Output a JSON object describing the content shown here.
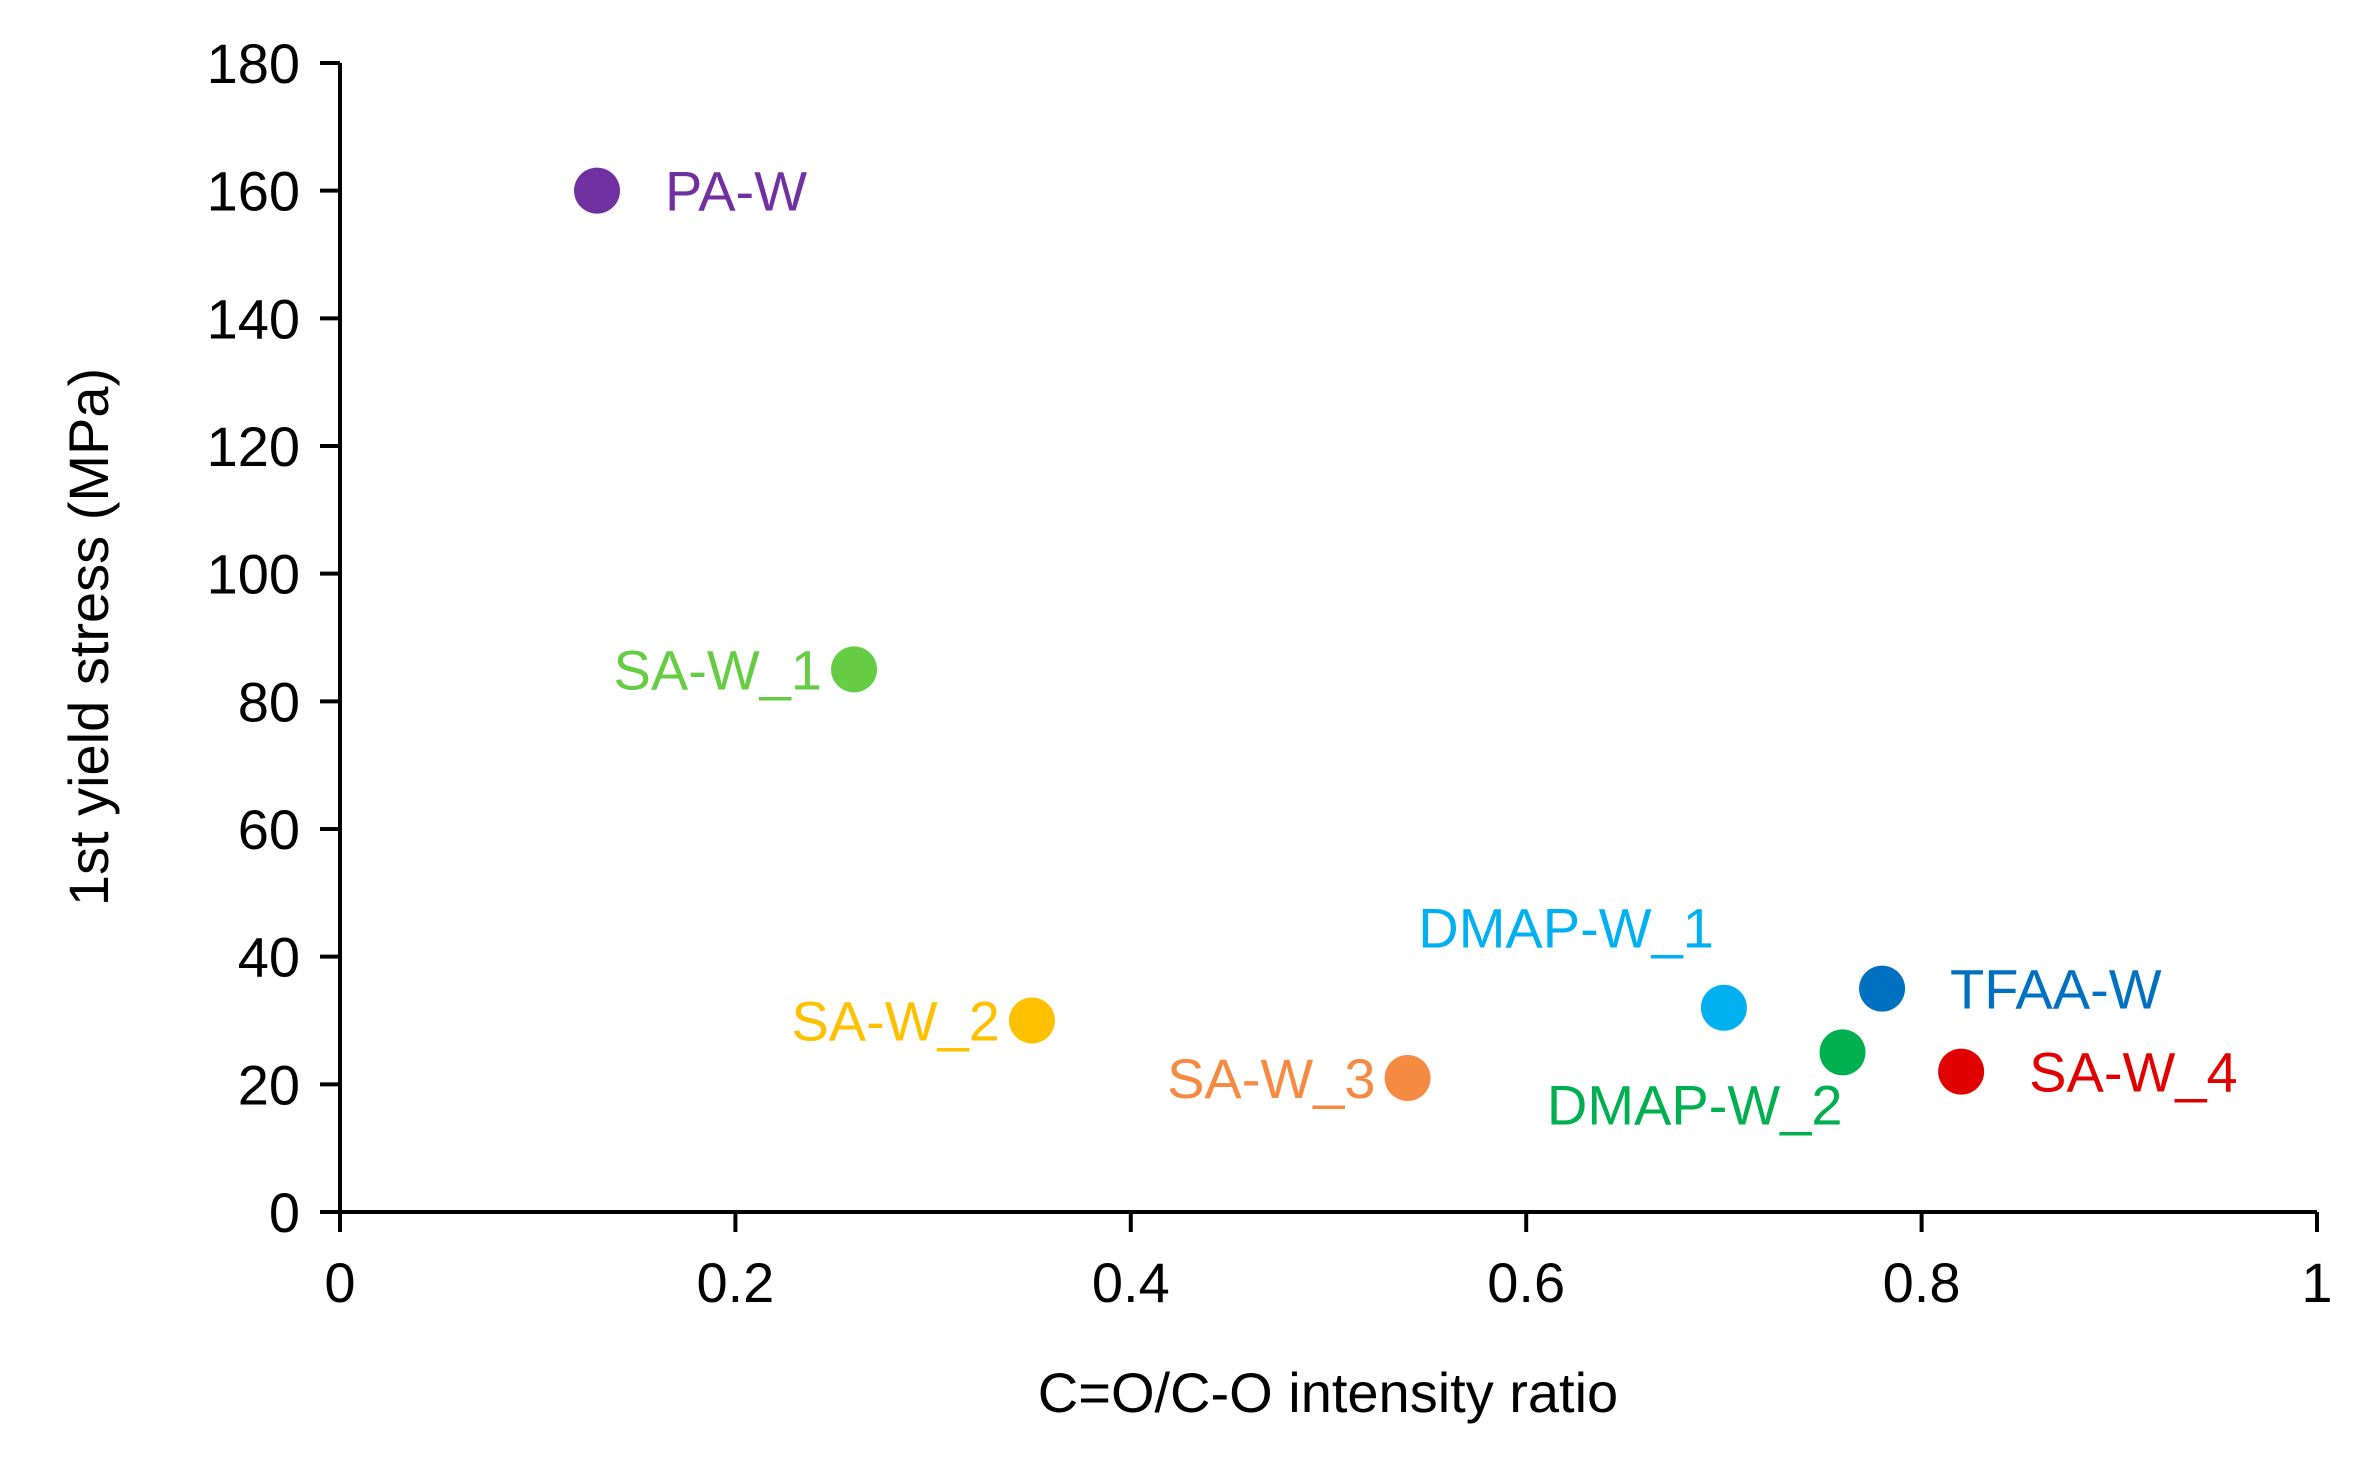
{
  "chart_data": {
    "type": "scatter",
    "title": "",
    "xlabel": "C=O/C-O intensity ratio",
    "ylabel": "1st yield stress (MPa)",
    "xlim": [
      0,
      1
    ],
    "ylim": [
      0,
      180
    ],
    "xticks": [
      0,
      0.2,
      0.4,
      0.6,
      0.8,
      1
    ],
    "xtick_labels": [
      "0",
      "0.2",
      "0.4",
      "0.6",
      "0.8",
      "1"
    ],
    "yticks": [
      0,
      20,
      40,
      60,
      80,
      100,
      120,
      140,
      160,
      180
    ],
    "ytick_labels": [
      "0",
      "20",
      "40",
      "60",
      "80",
      "100",
      "120",
      "140",
      "160",
      "180"
    ],
    "grid": false,
    "points": [
      {
        "label": "PA-W",
        "x": 0.13,
        "y": 160,
        "color": "#7030A0",
        "label_pos": "right"
      },
      {
        "label": "SA-W_1",
        "x": 0.26,
        "y": 85,
        "color": "#66CC44",
        "label_pos": "left"
      },
      {
        "label": "SA-W_2",
        "x": 0.35,
        "y": 30,
        "color": "#FFC000",
        "label_pos": "left"
      },
      {
        "label": "SA-W_3",
        "x": 0.54,
        "y": 21,
        "color": "#F58A42",
        "label_pos": "left"
      },
      {
        "label": "DMAP-W_1",
        "x": 0.7,
        "y": 32,
        "color": "#00B0F0",
        "label_pos": "upper-left"
      },
      {
        "label": "DMAP-W_2",
        "x": 0.76,
        "y": 25,
        "color": "#00B050",
        "label_pos": "lower-left"
      },
      {
        "label": "TFAA-W",
        "x": 0.78,
        "y": 35,
        "color": "#0070C0",
        "label_pos": "right"
      },
      {
        "label": "SA-W_4",
        "x": 0.82,
        "y": 22,
        "color": "#E00000",
        "label_pos": "right"
      }
    ]
  }
}
